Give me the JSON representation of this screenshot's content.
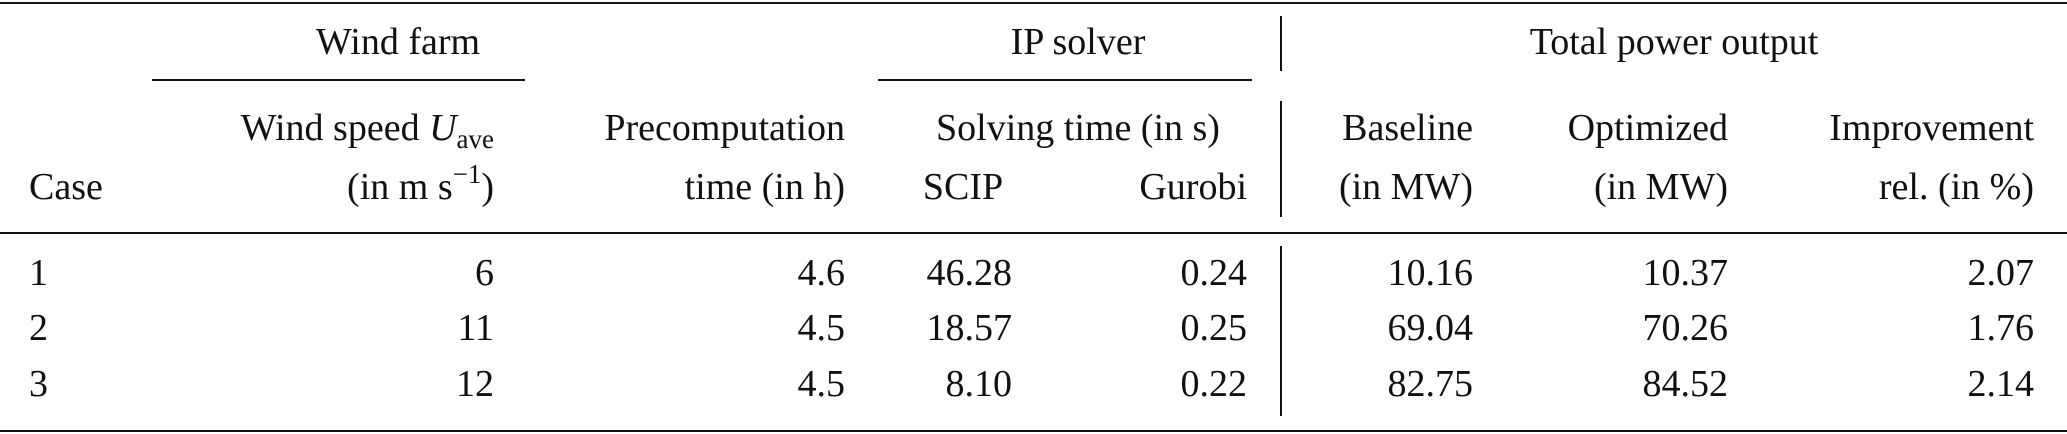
{
  "table": {
    "groups": [
      "Wind farm",
      "IP solver",
      "Total power output"
    ],
    "headers": {
      "case": "Case",
      "wind_speed": {
        "text": "Wind speed ",
        "symbol": "U",
        "subscript": "ave",
        "unit_open": "(in m s",
        "superscript": "−1",
        "unit_close": ")"
      },
      "precomputation": [
        "Precomputation",
        "time (in h)"
      ],
      "solving_time": "Solving time (in s)",
      "scip": "SCIP",
      "gurobi": "Gurobi",
      "baseline": [
        "Baseline",
        "(in MW)"
      ],
      "optimized": [
        "Optimized",
        "(in MW)"
      ],
      "improvement": [
        "Improvement",
        "rel. (in %)"
      ]
    },
    "rows": [
      [
        "1",
        "6",
        "4.6",
        "46.28",
        "0.24",
        "10.16",
        "10.37",
        "2.07"
      ],
      [
        "2",
        "11",
        "4.5",
        "18.57",
        "0.25",
        "69.04",
        "70.26",
        "1.76"
      ],
      [
        "3",
        "12",
        "4.5",
        "8.10",
        "0.22",
        "82.75",
        "84.52",
        "2.14"
      ]
    ]
  }
}
